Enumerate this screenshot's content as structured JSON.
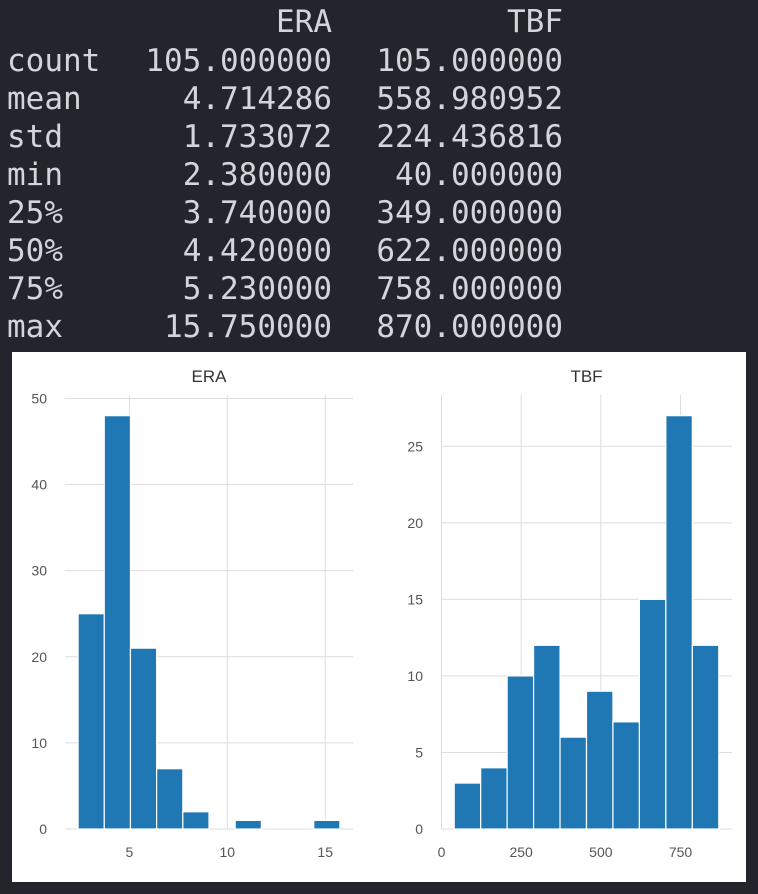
{
  "table": {
    "columns": [
      "ERA",
      "TBF"
    ],
    "rows": [
      [
        "count",
        "105.000000",
        "105.000000"
      ],
      [
        "mean",
        "4.714286",
        "558.980952"
      ],
      [
        "std",
        "1.733072",
        "224.436816"
      ],
      [
        "min",
        "2.380000",
        "40.000000"
      ],
      [
        "25%",
        "3.740000",
        "349.000000"
      ],
      [
        "50%",
        "4.420000",
        "622.000000"
      ],
      [
        "75%",
        "5.230000",
        "758.000000"
      ],
      [
        "max",
        "15.750000",
        "870.000000"
      ]
    ]
  },
  "chart_data": [
    {
      "type": "histogram",
      "title": "ERA",
      "color": "#1f77b4",
      "grid": true,
      "bins": [
        2.38,
        3.717,
        5.054,
        6.391,
        7.728,
        9.065,
        10.402,
        11.739,
        13.076,
        14.413,
        15.75
      ],
      "values": [
        25,
        48,
        21,
        7,
        2,
        0,
        1,
        0,
        0,
        1
      ],
      "xlim": [
        1.7115,
        16.4185
      ],
      "xticks": [
        5,
        10,
        15
      ],
      "ylim": [
        0,
        50.4
      ],
      "yticks": [
        0,
        10,
        20,
        30,
        40,
        50
      ]
    },
    {
      "type": "histogram",
      "title": "TBF",
      "color": "#1f77b4",
      "grid": true,
      "bins": [
        40,
        123,
        206,
        289,
        372,
        455,
        538,
        621,
        704,
        787,
        870
      ],
      "values": [
        3,
        4,
        10,
        12,
        6,
        9,
        7,
        15,
        27,
        12
      ],
      "xlim": [
        -1.5,
        911.5
      ],
      "xticks": [
        0,
        250,
        500,
        750
      ],
      "ylim": [
        0,
        28.35
      ],
      "yticks": [
        0,
        5,
        10,
        15,
        20,
        25
      ]
    }
  ]
}
